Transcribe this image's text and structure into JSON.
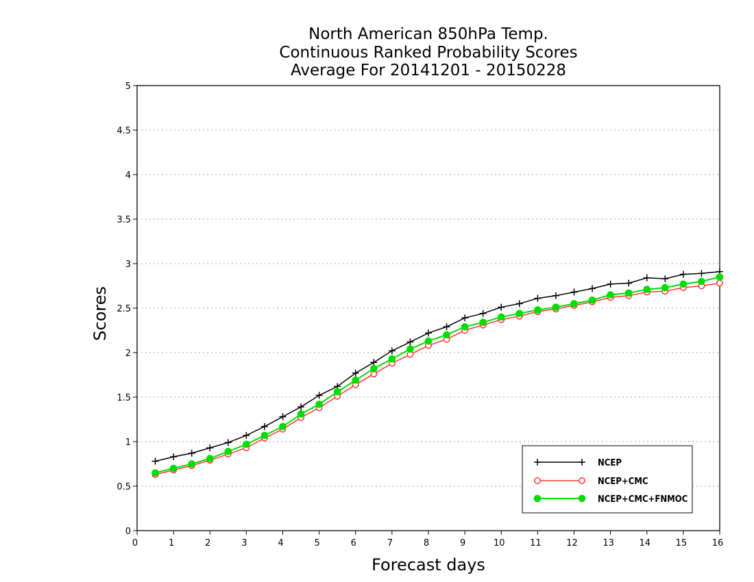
{
  "chart_data": {
    "type": "line",
    "title": [
      "North American 850hPa Temp.",
      "Continuous Ranked Probability Scores",
      "Average For 20141201 - 20150228"
    ],
    "xlabel": "Forecast days",
    "ylabel": "Scores",
    "xlim": [
      0,
      16
    ],
    "ylim": [
      0,
      5
    ],
    "xticks": [
      "0",
      "1",
      "2",
      "3",
      "4",
      "5",
      "6",
      "7",
      "8",
      "9",
      "10",
      "11",
      "12",
      "13",
      "14",
      "15",
      "16"
    ],
    "yticks": [
      "0",
      "0.5",
      "1",
      "1.5",
      "2",
      "2.5",
      "3",
      "3.5",
      "4",
      "4.5",
      "5"
    ],
    "grid": true,
    "legend_position": "bottom-right",
    "x": [
      0.5,
      1,
      1.5,
      2,
      2.5,
      3,
      3.5,
      4,
      4.5,
      5,
      5.5,
      6,
      6.5,
      7,
      7.5,
      8,
      8.5,
      9,
      9.5,
      10,
      10.5,
      11,
      11.5,
      12,
      12.5,
      13,
      13.5,
      14,
      14.5,
      15,
      15.5,
      16
    ],
    "series": [
      {
        "name": "NCEP",
        "color": "#000000",
        "marker": "plus",
        "values": [
          0.78,
          0.83,
          0.87,
          0.93,
          0.99,
          1.07,
          1.17,
          1.28,
          1.39,
          1.52,
          1.62,
          1.77,
          1.89,
          2.02,
          2.12,
          2.22,
          2.29,
          2.39,
          2.44,
          2.51,
          2.55,
          2.61,
          2.64,
          2.68,
          2.72,
          2.77,
          2.78,
          2.84,
          2.83,
          2.88,
          2.89,
          2.91
        ]
      },
      {
        "name": "NCEP+CMC",
        "color": "#ff3333",
        "marker": "open-circle",
        "values": [
          0.63,
          0.68,
          0.73,
          0.79,
          0.86,
          0.93,
          1.04,
          1.14,
          1.27,
          1.38,
          1.51,
          1.64,
          1.76,
          1.88,
          1.98,
          2.08,
          2.15,
          2.25,
          2.31,
          2.37,
          2.41,
          2.46,
          2.49,
          2.53,
          2.57,
          2.62,
          2.64,
          2.68,
          2.69,
          2.73,
          2.75,
          2.78
        ]
      },
      {
        "name": "NCEP+CMC+FNMOC",
        "color": "#00dd00",
        "marker": "filled-circle",
        "values": [
          0.65,
          0.7,
          0.75,
          0.81,
          0.89,
          0.97,
          1.07,
          1.17,
          1.31,
          1.42,
          1.56,
          1.69,
          1.82,
          1.93,
          2.04,
          2.13,
          2.2,
          2.29,
          2.34,
          2.4,
          2.44,
          2.48,
          2.51,
          2.55,
          2.59,
          2.65,
          2.67,
          2.71,
          2.73,
          2.77,
          2.8,
          2.85
        ]
      }
    ]
  }
}
